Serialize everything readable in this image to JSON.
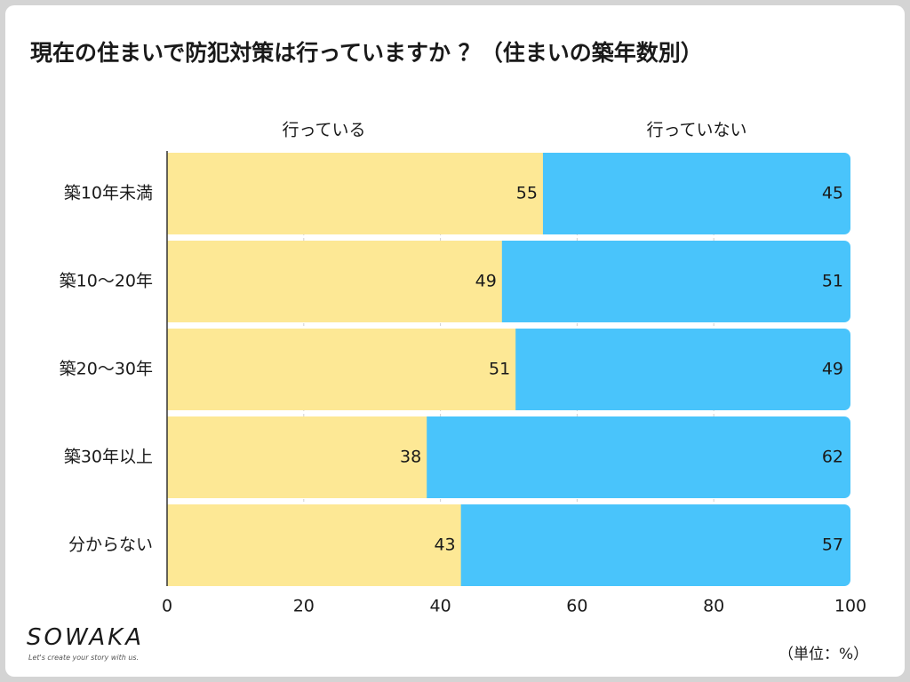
{
  "title": "現在の住まいで防犯対策は行っていますか ？（住まいの築年数別）",
  "unit_label": "（単位：%）",
  "logo": {
    "text": "SOWAKA",
    "tagline": "Let's create your story with us."
  },
  "colors": {
    "yes": "#fde895",
    "no": "#49c4fb",
    "grid": "#cfcfcf"
  },
  "chart_data": {
    "type": "bar",
    "orientation": "horizontal",
    "stacked": true,
    "title": "現在の住まいで防犯対策は行っていますか ？（住まいの築年数別）",
    "categories": [
      "築10年未満",
      "築10〜20年",
      "築20〜30年",
      "築30年以上",
      "分からない"
    ],
    "series": [
      {
        "name": "行っている",
        "values": [
          55,
          49,
          51,
          38,
          43
        ]
      },
      {
        "name": "行っていない",
        "values": [
          45,
          51,
          49,
          62,
          57
        ]
      }
    ],
    "xlim": [
      0,
      100
    ],
    "xticks": [
      "0",
      "20",
      "40",
      "60",
      "80",
      "100"
    ],
    "grid": true,
    "legend": "top",
    "unit": "%"
  }
}
